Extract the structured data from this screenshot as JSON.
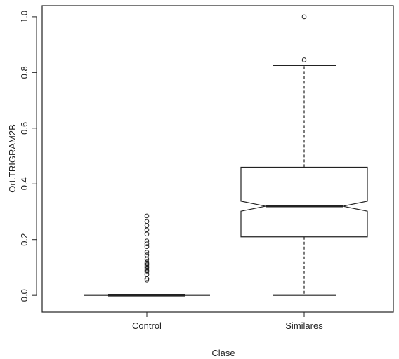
{
  "chart_data": {
    "type": "boxplot",
    "title": "",
    "xlabel": "Clase",
    "ylabel": "Ort.TRIGRAM2B",
    "categories": [
      "Control",
      "Similares"
    ],
    "y_ticks": [
      "0.0",
      "0.2",
      "0.4",
      "0.6",
      "0.8",
      "1.0"
    ],
    "y_tick_values": [
      0.0,
      0.2,
      0.4,
      0.6,
      0.8,
      1.0
    ],
    "ylim": [
      -0.06,
      1.04
    ],
    "notched": true,
    "grid": false,
    "boxes": [
      {
        "category": "Control",
        "min": 0.0,
        "q1": 0.0,
        "median": 0.0,
        "q3": 0.0,
        "max": 0.0,
        "notch_low": 0.0,
        "notch_high": 0.0,
        "outliers": [
          0.055,
          0.06,
          0.075,
          0.085,
          0.09,
          0.095,
          0.1,
          0.105,
          0.11,
          0.115,
          0.12,
          0.13,
          0.145,
          0.155,
          0.175,
          0.185,
          0.195,
          0.22,
          0.235,
          0.25,
          0.265,
          0.285
        ]
      },
      {
        "category": "Similares",
        "min": 0.0,
        "q1": 0.21,
        "median": 0.32,
        "q3": 0.46,
        "max": 0.825,
        "notch_low": 0.302,
        "notch_high": 0.338,
        "outliers": [
          0.845,
          1.0
        ]
      }
    ],
    "colors": {
      "stroke": "#222222",
      "background": "#ffffff"
    }
  }
}
